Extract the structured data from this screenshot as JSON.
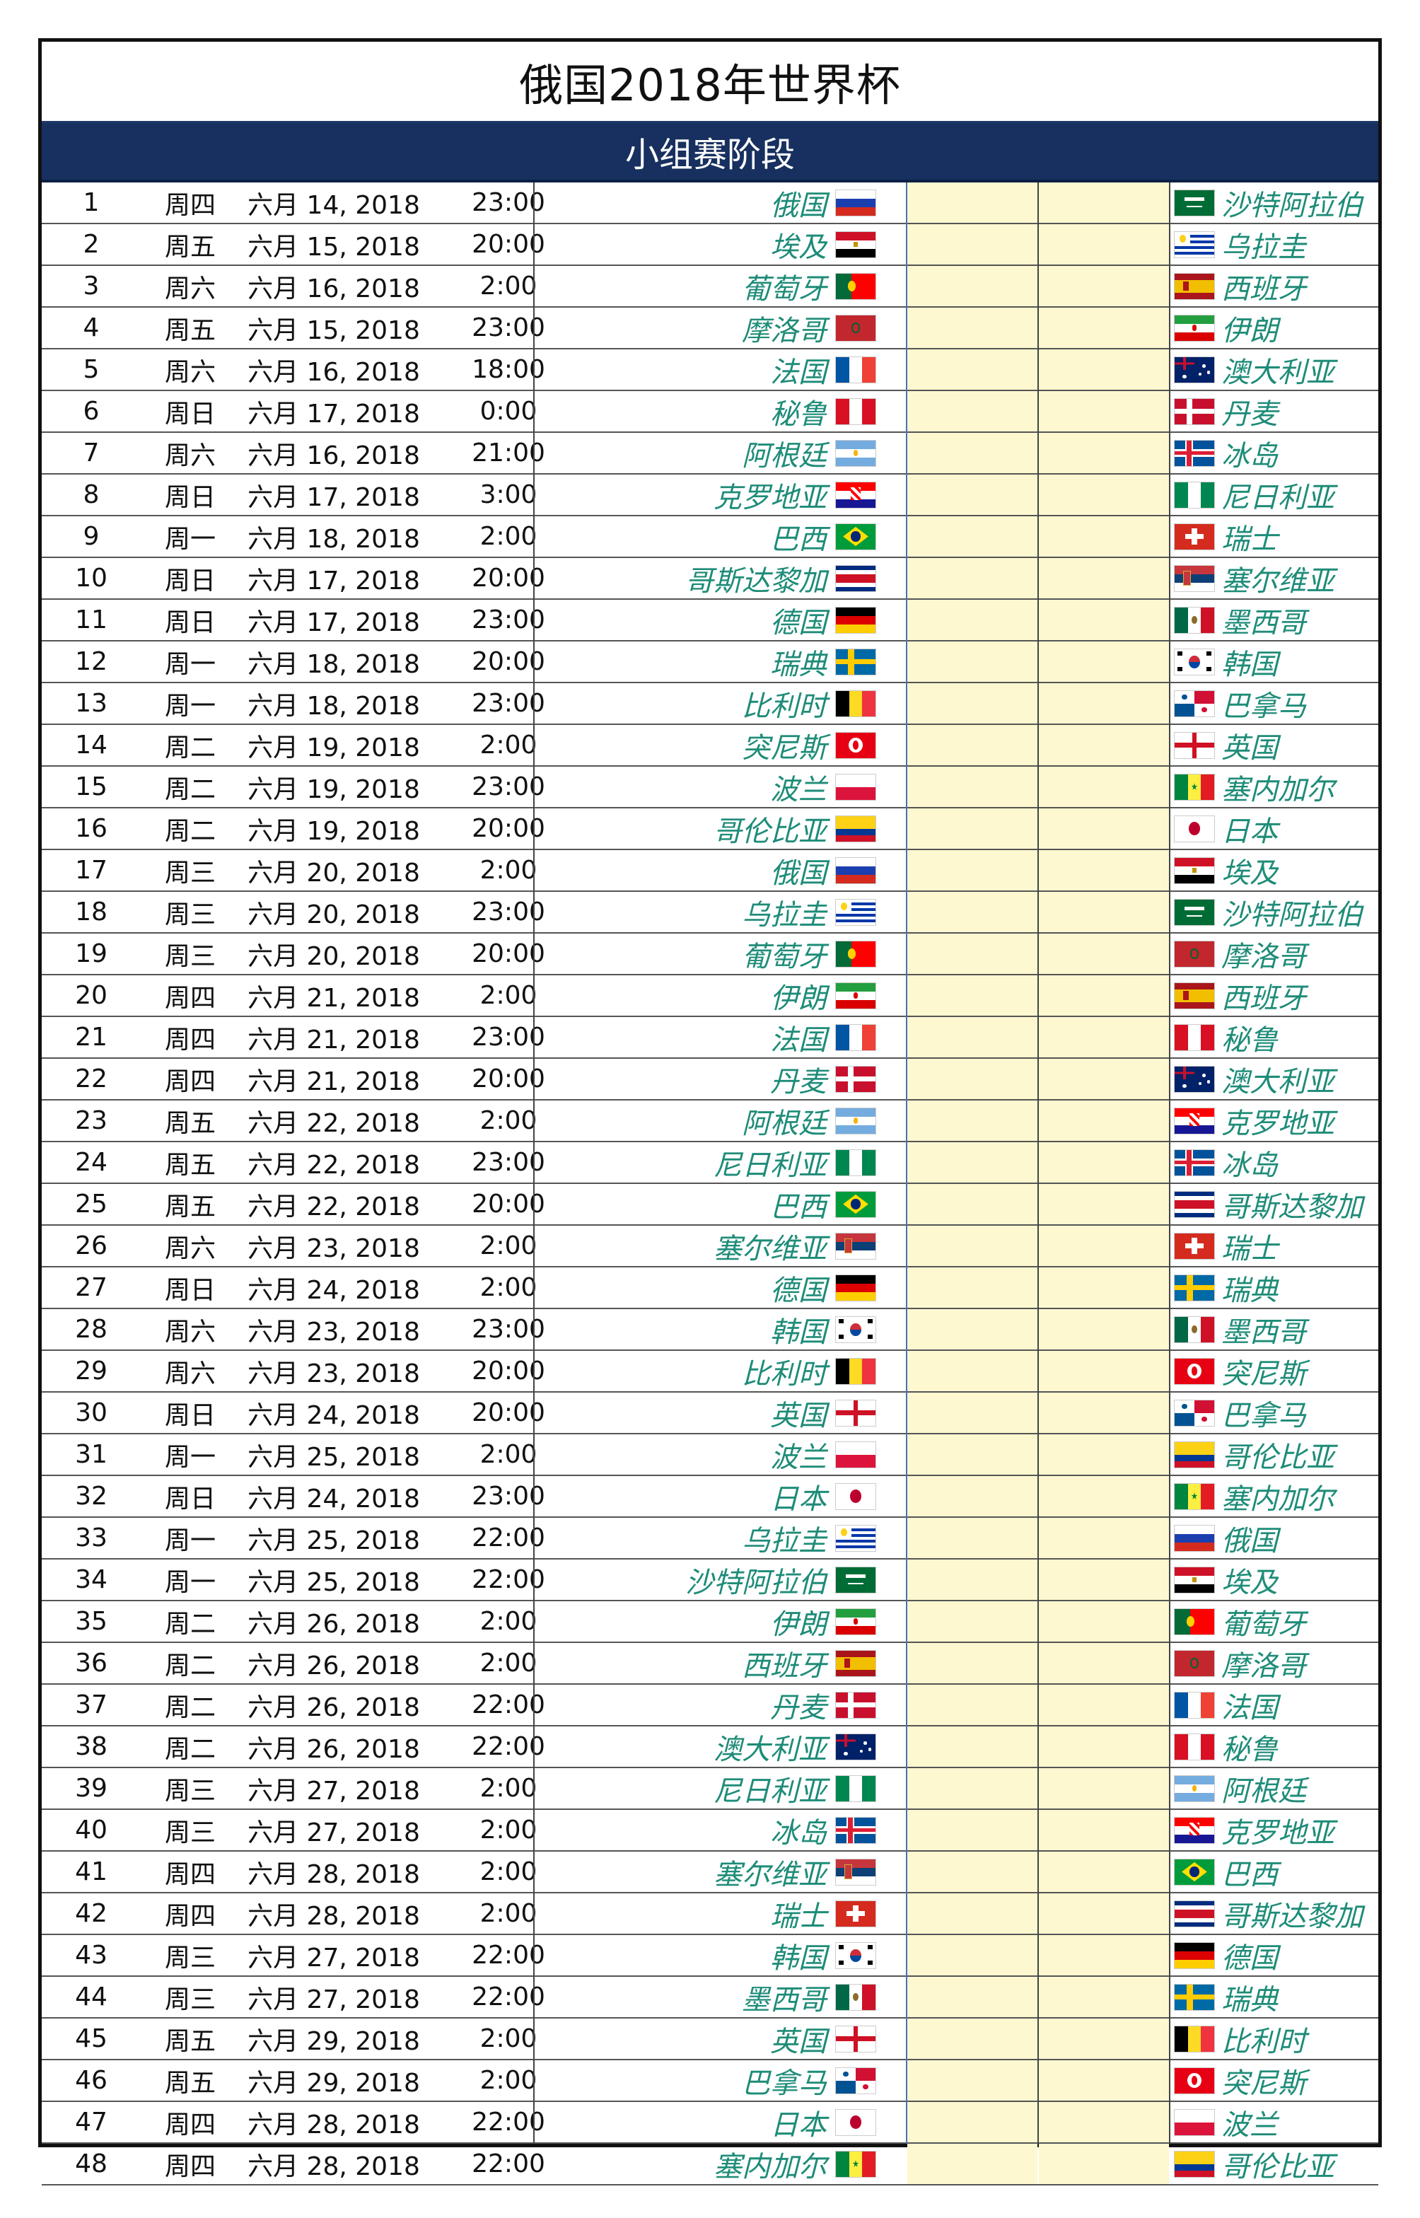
{
  "title": "俄国2018年世界杯",
  "stage": "小组赛阶段",
  "colors": {
    "header_bg": "#17305f",
    "team_text": "#1e8c78",
    "score_bg": "#fdf8d0"
  },
  "matches": [
    {
      "num": "1",
      "day": "周四",
      "date": "六月 14, 2018",
      "time": "23:00",
      "home": "俄国",
      "home_flag": "russia",
      "away": "沙特阿拉伯",
      "away_flag": "saudi-arabia"
    },
    {
      "num": "2",
      "day": "周五",
      "date": "六月 15, 2018",
      "time": "20:00",
      "home": "埃及",
      "home_flag": "egypt",
      "away": "乌拉圭",
      "away_flag": "uruguay"
    },
    {
      "num": "3",
      "day": "周六",
      "date": "六月 16, 2018",
      "time": "2:00",
      "home": "葡萄牙",
      "home_flag": "portugal",
      "away": "西班牙",
      "away_flag": "spain"
    },
    {
      "num": "4",
      "day": "周五",
      "date": "六月 15, 2018",
      "time": "23:00",
      "home": "摩洛哥",
      "home_flag": "morocco",
      "away": "伊朗",
      "away_flag": "iran"
    },
    {
      "num": "5",
      "day": "周六",
      "date": "六月 16, 2018",
      "time": "18:00",
      "home": "法国",
      "home_flag": "france",
      "away": "澳大利亚",
      "away_flag": "australia"
    },
    {
      "num": "6",
      "day": "周日",
      "date": "六月 17, 2018",
      "time": "0:00",
      "home": "秘鲁",
      "home_flag": "peru",
      "away": "丹麦",
      "away_flag": "denmark"
    },
    {
      "num": "7",
      "day": "周六",
      "date": "六月 16, 2018",
      "time": "21:00",
      "home": "阿根廷",
      "home_flag": "argentina",
      "away": "冰岛",
      "away_flag": "iceland"
    },
    {
      "num": "8",
      "day": "周日",
      "date": "六月 17, 2018",
      "time": "3:00",
      "home": "克罗地亚",
      "home_flag": "croatia",
      "away": "尼日利亚",
      "away_flag": "nigeria"
    },
    {
      "num": "9",
      "day": "周一",
      "date": "六月 18, 2018",
      "time": "2:00",
      "home": "巴西",
      "home_flag": "brazil",
      "away": "瑞士",
      "away_flag": "switzerland"
    },
    {
      "num": "10",
      "day": "周日",
      "date": "六月 17, 2018",
      "time": "20:00",
      "home": "哥斯达黎加",
      "home_flag": "costa-rica",
      "away": "塞尔维亚",
      "away_flag": "serbia"
    },
    {
      "num": "11",
      "day": "周日",
      "date": "六月 17, 2018",
      "time": "23:00",
      "home": "德国",
      "home_flag": "germany",
      "away": "墨西哥",
      "away_flag": "mexico"
    },
    {
      "num": "12",
      "day": "周一",
      "date": "六月 18, 2018",
      "time": "20:00",
      "home": "瑞典",
      "home_flag": "sweden",
      "away": "韩国",
      "away_flag": "korea"
    },
    {
      "num": "13",
      "day": "周一",
      "date": "六月 18, 2018",
      "time": "23:00",
      "home": "比利时",
      "home_flag": "belgium",
      "away": "巴拿马",
      "away_flag": "panama"
    },
    {
      "num": "14",
      "day": "周二",
      "date": "六月 19, 2018",
      "time": "2:00",
      "home": "突尼斯",
      "home_flag": "tunisia",
      "away": "英国",
      "away_flag": "england"
    },
    {
      "num": "15",
      "day": "周二",
      "date": "六月 19, 2018",
      "time": "23:00",
      "home": "波兰",
      "home_flag": "poland",
      "away": "塞内加尔",
      "away_flag": "senegal"
    },
    {
      "num": "16",
      "day": "周二",
      "date": "六月 19, 2018",
      "time": "20:00",
      "home": "哥伦比亚",
      "home_flag": "colombia",
      "away": "日本",
      "away_flag": "japan"
    },
    {
      "num": "17",
      "day": "周三",
      "date": "六月 20, 2018",
      "time": "2:00",
      "home": "俄国",
      "home_flag": "russia",
      "away": "埃及",
      "away_flag": "egypt"
    },
    {
      "num": "18",
      "day": "周三",
      "date": "六月 20, 2018",
      "time": "23:00",
      "home": "乌拉圭",
      "home_flag": "uruguay",
      "away": "沙特阿拉伯",
      "away_flag": "saudi-arabia"
    },
    {
      "num": "19",
      "day": "周三",
      "date": "六月 20, 2018",
      "time": "20:00",
      "home": "葡萄牙",
      "home_flag": "portugal",
      "away": "摩洛哥",
      "away_flag": "morocco"
    },
    {
      "num": "20",
      "day": "周四",
      "date": "六月 21, 2018",
      "time": "2:00",
      "home": "伊朗",
      "home_flag": "iran",
      "away": "西班牙",
      "away_flag": "spain"
    },
    {
      "num": "21",
      "day": "周四",
      "date": "六月 21, 2018",
      "time": "23:00",
      "home": "法国",
      "home_flag": "france",
      "away": "秘鲁",
      "away_flag": "peru"
    },
    {
      "num": "22",
      "day": "周四",
      "date": "六月 21, 2018",
      "time": "20:00",
      "home": "丹麦",
      "home_flag": "denmark",
      "away": "澳大利亚",
      "away_flag": "australia"
    },
    {
      "num": "23",
      "day": "周五",
      "date": "六月 22, 2018",
      "time": "2:00",
      "home": "阿根廷",
      "home_flag": "argentina",
      "away": "克罗地亚",
      "away_flag": "croatia"
    },
    {
      "num": "24",
      "day": "周五",
      "date": "六月 22, 2018",
      "time": "23:00",
      "home": "尼日利亚",
      "home_flag": "nigeria",
      "away": "冰岛",
      "away_flag": "iceland"
    },
    {
      "num": "25",
      "day": "周五",
      "date": "六月 22, 2018",
      "time": "20:00",
      "home": "巴西",
      "home_flag": "brazil",
      "away": "哥斯达黎加",
      "away_flag": "costa-rica"
    },
    {
      "num": "26",
      "day": "周六",
      "date": "六月 23, 2018",
      "time": "2:00",
      "home": "塞尔维亚",
      "home_flag": "serbia",
      "away": "瑞士",
      "away_flag": "switzerland"
    },
    {
      "num": "27",
      "day": "周日",
      "date": "六月 24, 2018",
      "time": "2:00",
      "home": "德国",
      "home_flag": "germany",
      "away": "瑞典",
      "away_flag": "sweden"
    },
    {
      "num": "28",
      "day": "周六",
      "date": "六月 23, 2018",
      "time": "23:00",
      "home": "韩国",
      "home_flag": "korea",
      "away": "墨西哥",
      "away_flag": "mexico"
    },
    {
      "num": "29",
      "day": "周六",
      "date": "六月 23, 2018",
      "time": "20:00",
      "home": "比利时",
      "home_flag": "belgium",
      "away": "突尼斯",
      "away_flag": "tunisia"
    },
    {
      "num": "30",
      "day": "周日",
      "date": "六月 24, 2018",
      "time": "20:00",
      "home": "英国",
      "home_flag": "england",
      "away": "巴拿马",
      "away_flag": "panama"
    },
    {
      "num": "31",
      "day": "周一",
      "date": "六月 25, 2018",
      "time": "2:00",
      "home": "波兰",
      "home_flag": "poland",
      "away": "哥伦比亚",
      "away_flag": "colombia"
    },
    {
      "num": "32",
      "day": "周日",
      "date": "六月 24, 2018",
      "time": "23:00",
      "home": "日本",
      "home_flag": "japan",
      "away": "塞内加尔",
      "away_flag": "senegal"
    },
    {
      "num": "33",
      "day": "周一",
      "date": "六月 25, 2018",
      "time": "22:00",
      "home": "乌拉圭",
      "home_flag": "uruguay",
      "away": "俄国",
      "away_flag": "russia"
    },
    {
      "num": "34",
      "day": "周一",
      "date": "六月 25, 2018",
      "time": "22:00",
      "home": "沙特阿拉伯",
      "home_flag": "saudi-arabia",
      "away": "埃及",
      "away_flag": "egypt"
    },
    {
      "num": "35",
      "day": "周二",
      "date": "六月 26, 2018",
      "time": "2:00",
      "home": "伊朗",
      "home_flag": "iran",
      "away": "葡萄牙",
      "away_flag": "portugal"
    },
    {
      "num": "36",
      "day": "周二",
      "date": "六月 26, 2018",
      "time": "2:00",
      "home": "西班牙",
      "home_flag": "spain",
      "away": "摩洛哥",
      "away_flag": "morocco"
    },
    {
      "num": "37",
      "day": "周二",
      "date": "六月 26, 2018",
      "time": "22:00",
      "home": "丹麦",
      "home_flag": "denmark",
      "away": "法国",
      "away_flag": "france"
    },
    {
      "num": "38",
      "day": "周二",
      "date": "六月 26, 2018",
      "time": "22:00",
      "home": "澳大利亚",
      "home_flag": "australia",
      "away": "秘鲁",
      "away_flag": "peru"
    },
    {
      "num": "39",
      "day": "周三",
      "date": "六月 27, 2018",
      "time": "2:00",
      "home": "尼日利亚",
      "home_flag": "nigeria",
      "away": "阿根廷",
      "away_flag": "argentina"
    },
    {
      "num": "40",
      "day": "周三",
      "date": "六月 27, 2018",
      "time": "2:00",
      "home": "冰岛",
      "home_flag": "iceland",
      "away": "克罗地亚",
      "away_flag": "croatia"
    },
    {
      "num": "41",
      "day": "周四",
      "date": "六月 28, 2018",
      "time": "2:00",
      "home": "塞尔维亚",
      "home_flag": "serbia",
      "away": "巴西",
      "away_flag": "brazil"
    },
    {
      "num": "42",
      "day": "周四",
      "date": "六月 28, 2018",
      "time": "2:00",
      "home": "瑞士",
      "home_flag": "switzerland",
      "away": "哥斯达黎加",
      "away_flag": "costa-rica"
    },
    {
      "num": "43",
      "day": "周三",
      "date": "六月 27, 2018",
      "time": "22:00",
      "home": "韩国",
      "home_flag": "korea",
      "away": "德国",
      "away_flag": "germany"
    },
    {
      "num": "44",
      "day": "周三",
      "date": "六月 27, 2018",
      "time": "22:00",
      "home": "墨西哥",
      "home_flag": "mexico",
      "away": "瑞典",
      "away_flag": "sweden"
    },
    {
      "num": "45",
      "day": "周五",
      "date": "六月 29, 2018",
      "time": "2:00",
      "home": "英国",
      "home_flag": "england",
      "away": "比利时",
      "away_flag": "belgium"
    },
    {
      "num": "46",
      "day": "周五",
      "date": "六月 29, 2018",
      "time": "2:00",
      "home": "巴拿马",
      "home_flag": "panama",
      "away": "突尼斯",
      "away_flag": "tunisia"
    },
    {
      "num": "47",
      "day": "周四",
      "date": "六月 28, 2018",
      "time": "22:00",
      "home": "日本",
      "home_flag": "japan",
      "away": "波兰",
      "away_flag": "poland"
    },
    {
      "num": "48",
      "day": "周四",
      "date": "六月 28, 2018",
      "time": "22:00",
      "home": "塞内加尔",
      "home_flag": "senegal",
      "away": "哥伦比亚",
      "away_flag": "colombia"
    }
  ]
}
